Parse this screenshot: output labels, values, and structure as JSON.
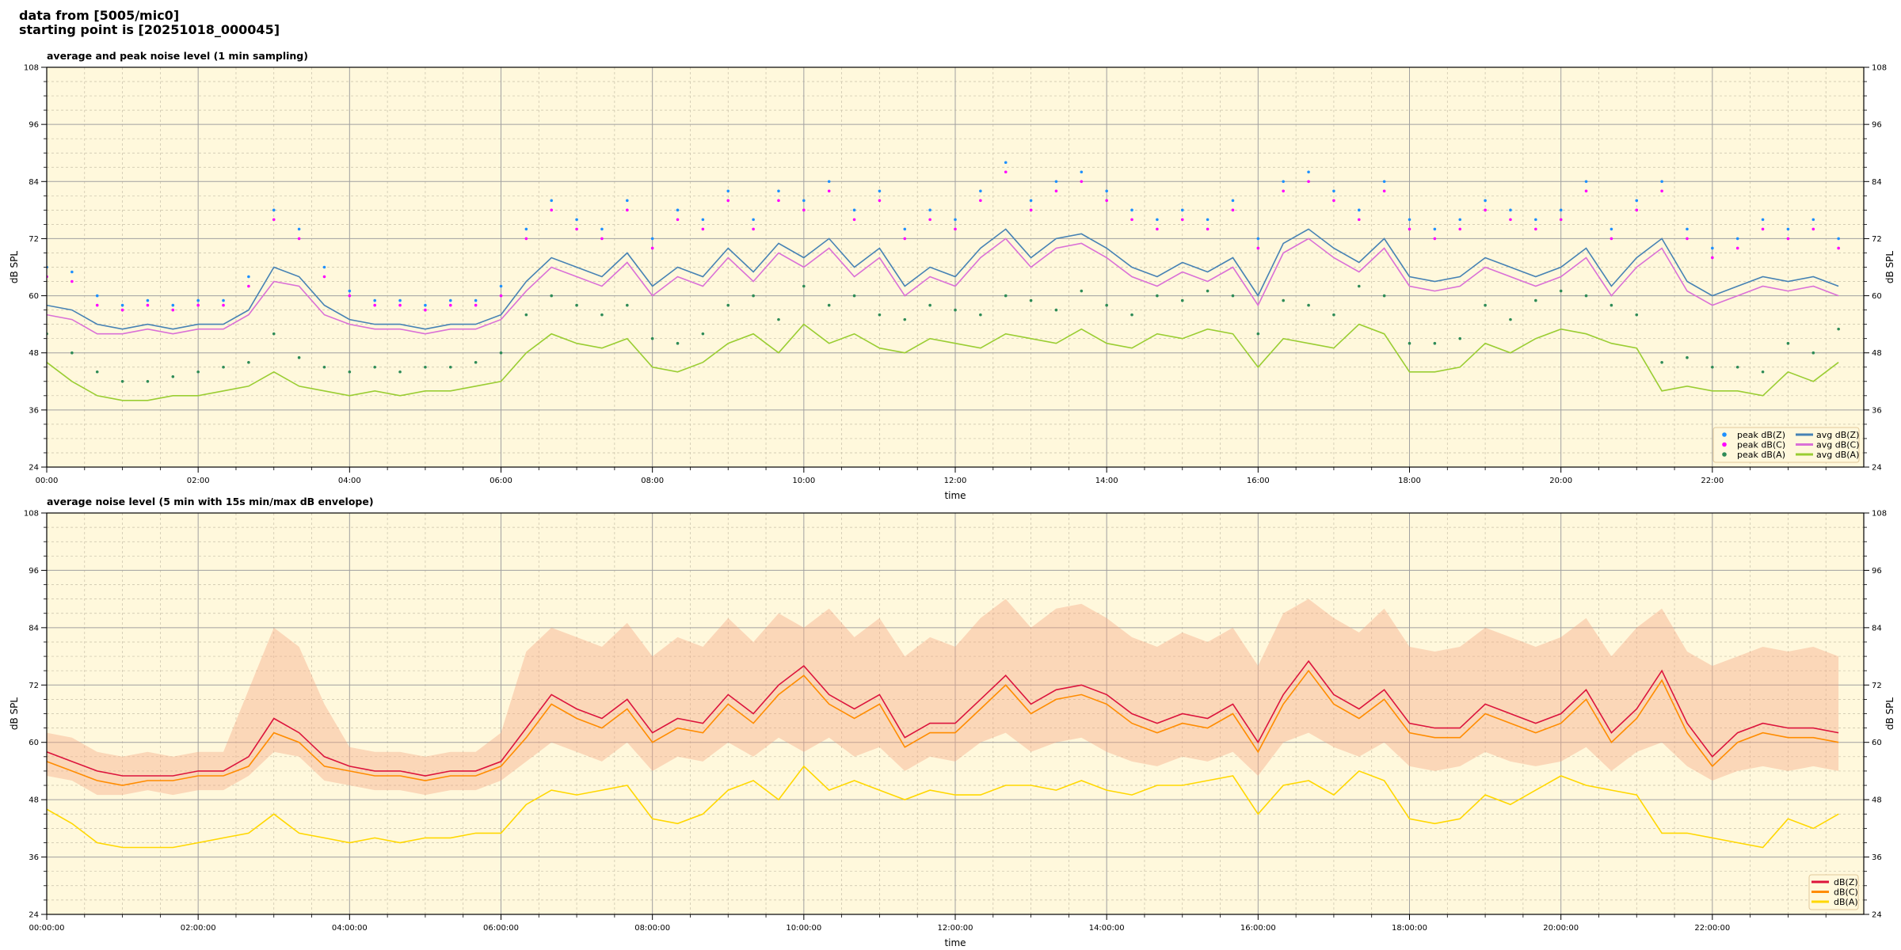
{
  "header": {
    "line1": "data from [5005/mic0]",
    "line2": "starting point is [20251018_000045]"
  },
  "colors": {
    "background": "#fff8dc"
  },
  "chart_data": [
    {
      "type": "line",
      "title": "average and peak noise level (1 min sampling)",
      "xlabel": "time",
      "ylabel": "dB SPL",
      "ylim": [
        24,
        108
      ],
      "yticks": [
        "24",
        "36",
        "48",
        "60",
        "72",
        "84",
        "96",
        "108"
      ],
      "xlim": [
        "00:00",
        "24:00"
      ],
      "xticks": [
        "00:00",
        "02:00",
        "04:00",
        "06:00",
        "08:00",
        "10:00",
        "12:00",
        "14:00",
        "16:00",
        "18:00",
        "20:00",
        "22:00"
      ],
      "grid": true,
      "legend_position": "bottom-right",
      "x": [
        "00:00",
        "00:20",
        "00:40",
        "01:00",
        "01:20",
        "01:40",
        "02:00",
        "02:20",
        "02:40",
        "03:00",
        "03:20",
        "03:40",
        "04:00",
        "04:20",
        "04:40",
        "05:00",
        "05:20",
        "05:40",
        "06:00",
        "06:20",
        "06:40",
        "07:00",
        "07:20",
        "07:40",
        "08:00",
        "08:20",
        "08:40",
        "09:00",
        "09:20",
        "09:40",
        "10:00",
        "10:20",
        "10:40",
        "11:00",
        "11:20",
        "11:40",
        "12:00",
        "12:20",
        "12:40",
        "13:00",
        "13:20",
        "13:40",
        "14:00",
        "14:20",
        "14:40",
        "15:00",
        "15:20",
        "15:40",
        "16:00",
        "16:20",
        "16:40",
        "17:00",
        "17:20",
        "17:40",
        "18:00",
        "18:20",
        "18:40",
        "19:00",
        "19:20",
        "19:40",
        "20:00",
        "20:20",
        "20:40",
        "21:00",
        "21:20",
        "21:40",
        "22:00",
        "22:20",
        "22:40",
        "23:00",
        "23:20",
        "23:40"
      ],
      "series": [
        {
          "name": "peak dB(Z)",
          "kind": "scatter",
          "color": "#1e90ff",
          "values": [
            66,
            65,
            60,
            58,
            59,
            58,
            59,
            59,
            64,
            78,
            74,
            66,
            61,
            59,
            59,
            58,
            59,
            59,
            62,
            74,
            80,
            76,
            74,
            80,
            72,
            78,
            76,
            82,
            76,
            82,
            80,
            84,
            78,
            82,
            74,
            78,
            76,
            82,
            88,
            80,
            84,
            86,
            82,
            78,
            76,
            78,
            76,
            80,
            72,
            84,
            86,
            82,
            78,
            84,
            76,
            74,
            76,
            80,
            78,
            76,
            78,
            84,
            74,
            80,
            84,
            74,
            70,
            72,
            76,
            74,
            76,
            72
          ]
        },
        {
          "name": "peak dB(C)",
          "kind": "scatter",
          "color": "#ff00ff",
          "values": [
            64,
            63,
            58,
            57,
            58,
            57,
            58,
            58,
            62,
            76,
            72,
            64,
            60,
            58,
            58,
            57,
            58,
            58,
            60,
            72,
            78,
            74,
            72,
            78,
            70,
            76,
            74,
            80,
            74,
            80,
            78,
            82,
            76,
            80,
            72,
            76,
            74,
            80,
            86,
            78,
            82,
            84,
            80,
            76,
            74,
            76,
            74,
            78,
            70,
            82,
            84,
            80,
            76,
            82,
            74,
            72,
            74,
            78,
            76,
            74,
            76,
            82,
            72,
            78,
            82,
            72,
            68,
            70,
            74,
            72,
            74,
            70
          ]
        },
        {
          "name": "peak dB(A)",
          "kind": "scatter",
          "color": "#2e8b57",
          "values": [
            52,
            48,
            44,
            42,
            42,
            43,
            44,
            45,
            46,
            52,
            47,
            45,
            44,
            45,
            44,
            45,
            45,
            46,
            48,
            56,
            60,
            58,
            56,
            58,
            51,
            50,
            52,
            58,
            60,
            55,
            62,
            58,
            60,
            56,
            55,
            58,
            57,
            56,
            60,
            59,
            57,
            61,
            58,
            56,
            60,
            59,
            61,
            60,
            52,
            59,
            58,
            56,
            62,
            60,
            50,
            50,
            51,
            58,
            55,
            59,
            61,
            60,
            58,
            56,
            46,
            47,
            45,
            45,
            44,
            50,
            48,
            53
          ]
        },
        {
          "name": "avg dB(Z)",
          "kind": "line",
          "color": "#4682b4",
          "values": [
            58,
            57,
            54,
            53,
            54,
            53,
            54,
            54,
            57,
            66,
            64,
            58,
            55,
            54,
            54,
            53,
            54,
            54,
            56,
            63,
            68,
            66,
            64,
            69,
            62,
            66,
            64,
            70,
            65,
            71,
            68,
            72,
            66,
            70,
            62,
            66,
            64,
            70,
            74,
            68,
            72,
            73,
            70,
            66,
            64,
            67,
            65,
            68,
            60,
            71,
            74,
            70,
            67,
            72,
            64,
            63,
            64,
            68,
            66,
            64,
            66,
            70,
            62,
            68,
            72,
            63,
            60,
            62,
            64,
            63,
            64,
            62
          ]
        },
        {
          "name": "avg dB(C)",
          "kind": "line",
          "color": "#da70d6",
          "values": [
            56,
            55,
            52,
            52,
            53,
            52,
            53,
            53,
            56,
            63,
            62,
            56,
            54,
            53,
            53,
            52,
            53,
            53,
            55,
            61,
            66,
            64,
            62,
            67,
            60,
            64,
            62,
            68,
            63,
            69,
            66,
            70,
            64,
            68,
            60,
            64,
            62,
            68,
            72,
            66,
            70,
            71,
            68,
            64,
            62,
            65,
            63,
            66,
            58,
            69,
            72,
            68,
            65,
            70,
            62,
            61,
            62,
            66,
            64,
            62,
            64,
            68,
            60,
            66,
            70,
            61,
            58,
            60,
            62,
            61,
            62,
            60
          ]
        },
        {
          "name": "avg dB(A)",
          "kind": "line",
          "color": "#9acd32",
          "values": [
            46,
            42,
            39,
            38,
            38,
            39,
            39,
            40,
            41,
            44,
            41,
            40,
            39,
            40,
            39,
            40,
            40,
            41,
            42,
            48,
            52,
            50,
            49,
            51,
            45,
            44,
            46,
            50,
            52,
            48,
            54,
            50,
            52,
            49,
            48,
            51,
            50,
            49,
            52,
            51,
            50,
            53,
            50,
            49,
            52,
            51,
            53,
            52,
            45,
            51,
            50,
            49,
            54,
            52,
            44,
            44,
            45,
            50,
            48,
            51,
            53,
            52,
            50,
            49,
            40,
            41,
            40,
            40,
            39,
            44,
            42,
            46
          ]
        }
      ]
    },
    {
      "type": "line",
      "title": "average noise level (5 min with 15s min/max dB envelope)",
      "xlabel": "time",
      "ylabel": "dB SPL",
      "ylim": [
        24,
        108
      ],
      "yticks": [
        "24",
        "36",
        "48",
        "60",
        "72",
        "84",
        "96",
        "108"
      ],
      "xlim": [
        "00:00:00",
        "24:00:00"
      ],
      "xticks": [
        "00:00:00",
        "02:00:00",
        "04:00:00",
        "06:00:00",
        "08:00:00",
        "10:00:00",
        "12:00:00",
        "14:00:00",
        "16:00:00",
        "18:00:00",
        "20:00:00",
        "22:00:00"
      ],
      "grid": true,
      "legend_position": "bottom-right",
      "x": [
        "00:00",
        "00:20",
        "00:40",
        "01:00",
        "01:20",
        "01:40",
        "02:00",
        "02:20",
        "02:40",
        "03:00",
        "03:20",
        "03:40",
        "04:00",
        "04:20",
        "04:40",
        "05:00",
        "05:20",
        "05:40",
        "06:00",
        "06:20",
        "06:40",
        "07:00",
        "07:20",
        "07:40",
        "08:00",
        "08:20",
        "08:40",
        "09:00",
        "09:20",
        "09:40",
        "10:00",
        "10:20",
        "10:40",
        "11:00",
        "11:20",
        "11:40",
        "12:00",
        "12:20",
        "12:40",
        "13:00",
        "13:20",
        "13:40",
        "14:00",
        "14:20",
        "14:40",
        "15:00",
        "15:20",
        "15:40",
        "16:00",
        "16:20",
        "16:40",
        "17:00",
        "17:20",
        "17:40",
        "18:00",
        "18:20",
        "18:40",
        "19:00",
        "19:20",
        "19:40",
        "20:00",
        "20:20",
        "20:40",
        "21:00",
        "21:20",
        "21:40",
        "22:00",
        "22:20",
        "22:40",
        "23:00",
        "23:20",
        "23:40"
      ],
      "envelope": {
        "color": "#f4a582",
        "max": [
          62,
          61,
          58,
          57,
          58,
          57,
          58,
          58,
          71,
          84,
          80,
          68,
          59,
          58,
          58,
          57,
          58,
          58,
          62,
          79,
          84,
          82,
          80,
          85,
          78,
          82,
          80,
          86,
          81,
          87,
          84,
          88,
          82,
          86,
          78,
          82,
          80,
          86,
          90,
          84,
          88,
          89,
          86,
          82,
          80,
          83,
          81,
          84,
          76,
          87,
          90,
          86,
          83,
          88,
          80,
          79,
          80,
          84,
          82,
          80,
          82,
          86,
          78,
          84,
          88,
          79,
          76,
          78,
          80,
          79,
          80,
          78
        ],
        "min": [
          53,
          52,
          49,
          49,
          50,
          49,
          50,
          50,
          53,
          58,
          57,
          52,
          51,
          50,
          50,
          49,
          50,
          50,
          52,
          56,
          60,
          58,
          56,
          60,
          54,
          57,
          56,
          60,
          57,
          61,
          58,
          61,
          57,
          59,
          54,
          57,
          56,
          60,
          62,
          58,
          60,
          61,
          58,
          56,
          55,
          57,
          56,
          58,
          53,
          60,
          62,
          59,
          57,
          60,
          55,
          54,
          55,
          58,
          56,
          55,
          56,
          59,
          54,
          58,
          60,
          55,
          52,
          54,
          55,
          54,
          55,
          54
        ]
      },
      "series": [
        {
          "name": "dB(Z)",
          "kind": "line",
          "color": "#dc143c",
          "values": [
            58,
            56,
            54,
            53,
            53,
            53,
            54,
            54,
            57,
            65,
            62,
            57,
            55,
            54,
            54,
            53,
            54,
            54,
            56,
            63,
            70,
            67,
            65,
            69,
            62,
            65,
            64,
            70,
            66,
            72,
            76,
            70,
            67,
            70,
            61,
            64,
            64,
            69,
            74,
            68,
            71,
            72,
            70,
            66,
            64,
            66,
            65,
            68,
            60,
            70,
            77,
            70,
            67,
            71,
            64,
            63,
            63,
            68,
            66,
            64,
            66,
            71,
            62,
            67,
            75,
            64,
            57,
            62,
            64,
            63,
            63,
            62
          ]
        },
        {
          "name": "dB(C)",
          "kind": "line",
          "color": "#ff8c00",
          "values": [
            56,
            54,
            52,
            51,
            52,
            52,
            53,
            53,
            55,
            62,
            60,
            55,
            54,
            53,
            53,
            52,
            53,
            53,
            55,
            61,
            68,
            65,
            63,
            67,
            60,
            63,
            62,
            68,
            64,
            70,
            74,
            68,
            65,
            68,
            59,
            62,
            62,
            67,
            72,
            66,
            69,
            70,
            68,
            64,
            62,
            64,
            63,
            66,
            58,
            68,
            75,
            68,
            65,
            69,
            62,
            61,
            61,
            66,
            64,
            62,
            64,
            69,
            60,
            65,
            73,
            62,
            55,
            60,
            62,
            61,
            61,
            60
          ]
        },
        {
          "name": "dB(A)",
          "kind": "line",
          "color": "#ffd700",
          "values": [
            46,
            43,
            39,
            38,
            38,
            38,
            39,
            40,
            41,
            45,
            41,
            40,
            39,
            40,
            39,
            40,
            40,
            41,
            41,
            47,
            50,
            49,
            50,
            51,
            44,
            43,
            45,
            50,
            52,
            48,
            55,
            50,
            52,
            50,
            48,
            50,
            49,
            49,
            51,
            51,
            50,
            52,
            50,
            49,
            51,
            51,
            52,
            53,
            45,
            51,
            52,
            49,
            54,
            52,
            44,
            43,
            44,
            49,
            47,
            50,
            53,
            51,
            50,
            49,
            41,
            41,
            40,
            39,
            38,
            44,
            42,
            45
          ]
        }
      ]
    }
  ]
}
